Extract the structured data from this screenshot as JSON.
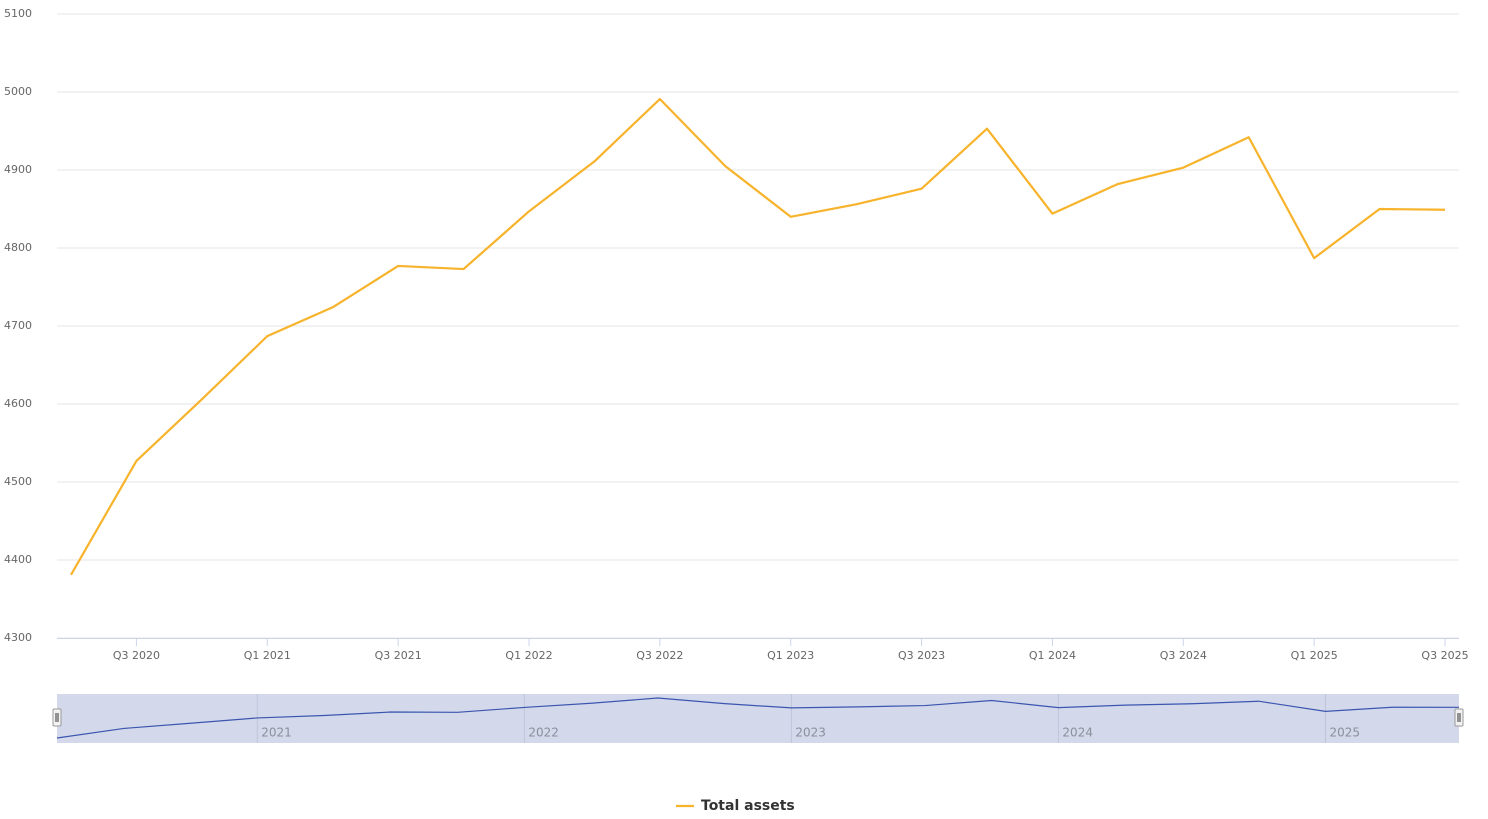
{
  "chart_data": {
    "type": "line",
    "categories": [
      null,
      "Q3 2020",
      null,
      "Q1 2021",
      null,
      "Q3 2021",
      null,
      "Q1 2022",
      null,
      "Q3 2022",
      null,
      "Q1 2023",
      null,
      "Q3 2023",
      null,
      "Q1 2024",
      null,
      "Q3 2024",
      null,
      "Q1 2025",
      null,
      "Q3 2025"
    ],
    "series": [
      {
        "name": "Total assets",
        "color": "#f7b32b",
        "values": [
          4381,
          4527,
          4606,
          4687,
          4724,
          4777,
          4773,
          4847,
          4911,
          4991,
          4905,
          4840,
          4856,
          4876,
          4953,
          4844,
          4882,
          4903,
          4942,
          4787,
          4850,
          4849
        ]
      }
    ],
    "ylim": [
      4300,
      5100
    ],
    "yticks": [
      4300,
      4400,
      4500,
      4600,
      4700,
      4800,
      4900,
      5000,
      5100
    ],
    "grid": true,
    "navigator": {
      "labels": [
        "2021",
        "2022",
        "2023",
        "2024",
        "2025"
      ],
      "color": "#3b55b0",
      "fill": "#d3d9ea"
    },
    "legend": "bottom"
  }
}
